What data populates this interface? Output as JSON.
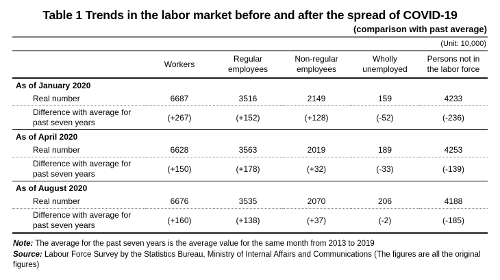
{
  "title": "Table 1 Trends in the labor market before and after the spread of COVID-19",
  "subtitle": "(comparison with past average)",
  "unit_label": "(Unit: 10,000)",
  "table": {
    "columns": [
      "Workers",
      "Regular employees",
      "Non-regular employees",
      "Wholly unemployed",
      "Persons not in the labor force"
    ],
    "sections": [
      {
        "period": "As of January 2020",
        "rows": [
          {
            "label": "Real number",
            "values": [
              "6687",
              "3516",
              "2149",
              "159",
              "4233"
            ]
          },
          {
            "label": "Difference with average for past seven years",
            "values": [
              "(+267)",
              "(+152)",
              "(+128)",
              "(-52)",
              "(-236)"
            ]
          }
        ]
      },
      {
        "period": "As of April 2020",
        "rows": [
          {
            "label": "Real number",
            "values": [
              "6628",
              "3563",
              "2019",
              "189",
              "4253"
            ]
          },
          {
            "label": "Difference with average for past seven years",
            "values": [
              "(+150)",
              "(+178)",
              "(+32)",
              "(-33)",
              "(-139)"
            ]
          }
        ]
      },
      {
        "period": "As of August 2020",
        "rows": [
          {
            "label": "Real number",
            "values": [
              "6676",
              "3535",
              "2070",
              "206",
              "4188"
            ]
          },
          {
            "label": "Difference with average for past seven years",
            "values": [
              "(+160)",
              "(+138)",
              "(+37)",
              "(-2)",
              "(-185)"
            ]
          }
        ]
      }
    ]
  },
  "footnotes": {
    "note_label": "Note:",
    "note_text": " The average for the past seven years is the average value for the same month from 2013 to 2019",
    "source_label": "Source:",
    "source_text": " Labour Force Survey by the Statistics Bureau, Ministry of Internal Affairs and Communications (The figures are all the original figures)"
  }
}
